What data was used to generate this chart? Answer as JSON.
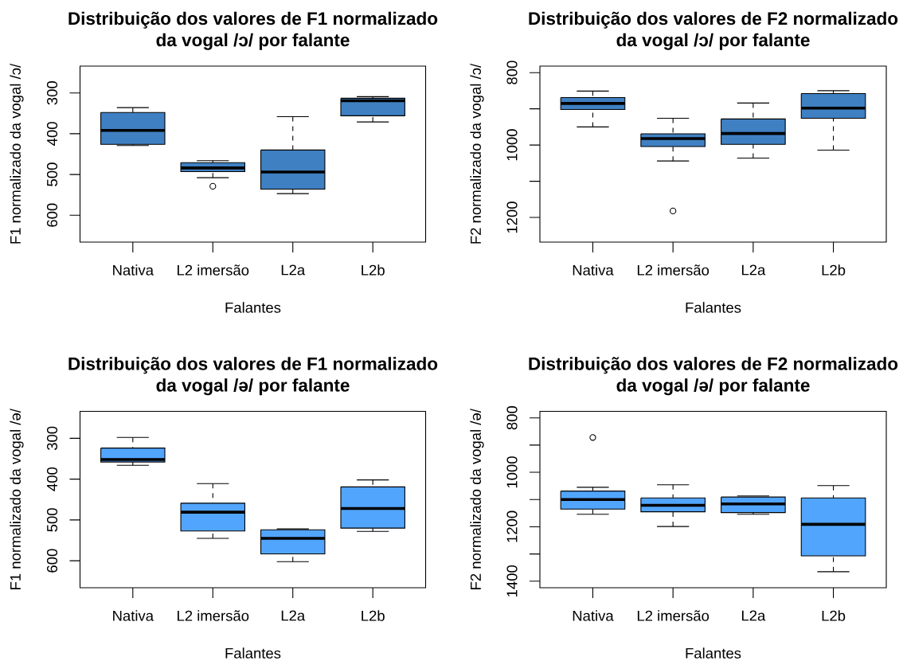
{
  "chart_data": [
    {
      "type": "box",
      "title": "Distribuição dos valores de F1 normalizado da vogal /ɔ/ por falante",
      "xlabel": "Falantes",
      "ylabel": "F1 normalizado da vogal /ɔ/",
      "categories": [
        "Nativa",
        "L2 imersão",
        "L2a",
        "L2b"
      ],
      "ylim": [
        666,
        234
      ],
      "yticks": [
        300,
        400,
        500,
        600
      ],
      "series": [
        {
          "color": "#3f80c2",
          "boxes": [
            {
              "low": 336,
              "q1": 348,
              "median": 392,
              "q3": 426,
              "high": 429
            },
            {
              "low": 466,
              "q1": 471,
              "median": 484,
              "q3": 493,
              "high": 508,
              "outliers": [
                529
              ]
            },
            {
              "low": 358,
              "q1": 440,
              "median": 494,
              "q3": 536,
              "high": 547
            },
            {
              "low": 309,
              "q1": 313,
              "median": 319,
              "q3": 356,
              "high": 371
            }
          ]
        }
      ]
    },
    {
      "type": "box",
      "title": "Distribuição dos valores de F2 normalizado da vogal /ɔ/ por falante",
      "xlabel": "Falantes",
      "ylabel": "F2 normalizado da vogal /ɔ/",
      "categories": [
        "Nativa",
        "L2 imersão",
        "L2a",
        "L2b"
      ],
      "ylim": [
        1268,
        782
      ],
      "yticks": [
        800,
        {
          "value": 900,
          "label": null
        },
        1000,
        {
          "value": 1100,
          "label": null
        },
        1200
      ],
      "series": [
        {
          "color": "#3f80c2",
          "boxes": [
            {
              "low": 851,
              "q1": 869,
              "median": 885,
              "q3": 902,
              "high": 950
            },
            {
              "low": 926,
              "q1": 969,
              "median": 982,
              "q3": 1004,
              "high": 1044,
              "outliers": [
                1182
              ]
            },
            {
              "low": 884,
              "q1": 928,
              "median": 968,
              "q3": 998,
              "high": 1036
            },
            {
              "low": 850,
              "q1": 858,
              "median": 898,
              "q3": 926,
              "high": 1014
            }
          ]
        }
      ]
    },
    {
      "type": "box",
      "title": "Distribuição dos valores de F1 normalizado da vogal /ə/ por falante",
      "xlabel": "Falantes",
      "ylabel": "F1 normalizado da vogal /ə/",
      "categories": [
        "Nativa",
        "L2 imersão",
        "L2a",
        "L2b"
      ],
      "ylim": [
        666,
        234
      ],
      "yticks": [
        300,
        400,
        500,
        600
      ],
      "series": [
        {
          "color": "#52a5fc",
          "boxes": [
            {
              "low": 298,
              "q1": 324,
              "median": 352,
              "q3": 358,
              "high": 366
            },
            {
              "low": 411,
              "q1": 459,
              "median": 481,
              "q3": 527,
              "high": 545
            },
            {
              "low": 522,
              "q1": 524,
              "median": 545,
              "q3": 583,
              "high": 602
            },
            {
              "low": 402,
              "q1": 419,
              "median": 472,
              "q3": 520,
              "high": 528
            }
          ]
        }
      ]
    },
    {
      "type": "box",
      "title": "Distribuição dos valores de F2 normalizado da vogal /ə/ por falante",
      "xlabel": "Falantes",
      "ylabel": "F2 normalizado da vogal /ə/",
      "categories": [
        "Nativa",
        "L2 imersão",
        "L2a",
        "L2b"
      ],
      "ylim": [
        1424,
        776
      ],
      "yticks": [
        800,
        {
          "value": 900,
          "label": null
        },
        1000,
        {
          "value": 1100,
          "label": null
        },
        1200,
        {
          "value": 1300,
          "label": null
        },
        1400
      ],
      "series": [
        {
          "color": "#52a5fc",
          "boxes": [
            {
              "low": 1055,
              "q1": 1069,
              "median": 1100,
              "q3": 1135,
              "high": 1154,
              "outliers": [
                872
              ]
            },
            {
              "low": 1046,
              "q1": 1094,
              "median": 1121,
              "q3": 1145,
              "high": 1199
            },
            {
              "low": 1087,
              "q1": 1091,
              "median": 1116,
              "q3": 1148,
              "high": 1154
            },
            {
              "low": 1049,
              "q1": 1094,
              "median": 1191,
              "q3": 1307,
              "high": 1365
            }
          ]
        }
      ]
    }
  ]
}
